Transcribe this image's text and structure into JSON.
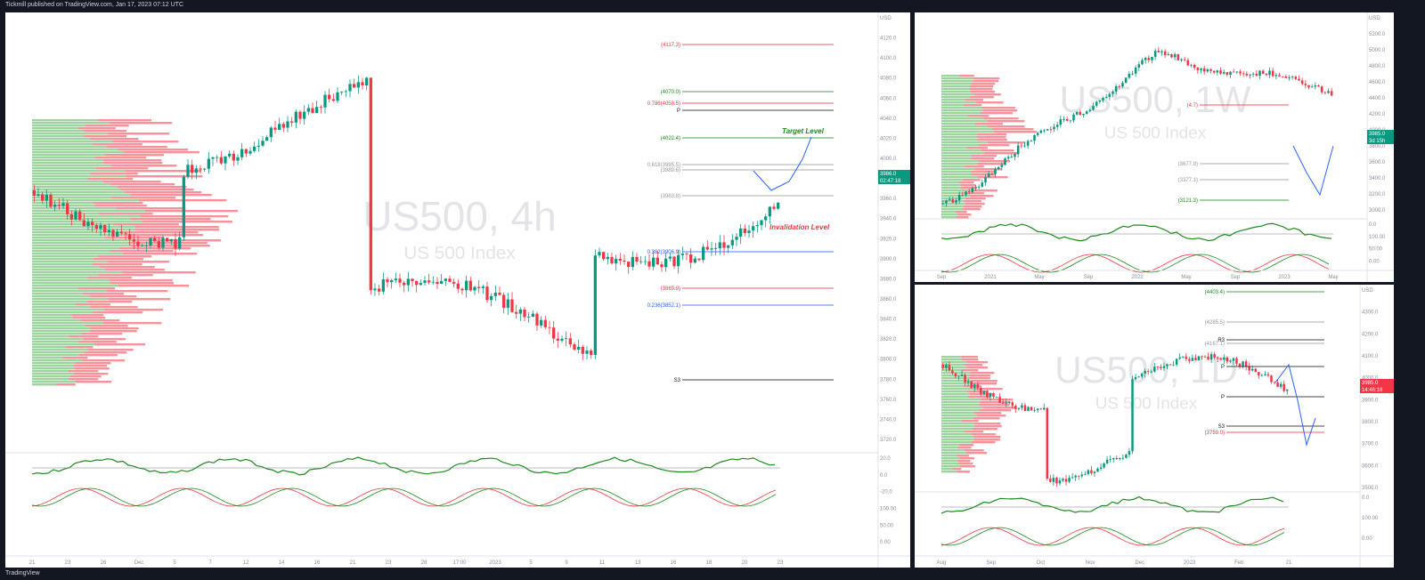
{
  "header": {
    "published": "Tickmill published on TradingView.com, Jan 17, 2023 07:12 UTC"
  },
  "footer": {
    "logo": "TradingView"
  },
  "colors": {
    "up": "#089981",
    "down": "#f23645",
    "green_line": "#1b8c1b",
    "red_line": "#f23645",
    "blue_proj": "#2962ff"
  },
  "chart_data": [
    {
      "type": "candlestick",
      "panel": "4h",
      "title": "US500, 4h",
      "subtitle": "US 500 Index",
      "y_axis": {
        "ticks": [
          "USD",
          "4120.0",
          "4100.0",
          "4080.0",
          "4060.0",
          "4040.0",
          "4020.0",
          "4000.0",
          "3980.0",
          "3960.0",
          "3940.0",
          "3920.0",
          "3900.0",
          "3880.0",
          "3860.0",
          "3840.0",
          "3820.0",
          "3800.0",
          "3780.0",
          "3760.0",
          "3740.0",
          "3720.0"
        ]
      },
      "x_axis": {
        "ticks": [
          "21",
          "23",
          "26",
          "Dec",
          "5",
          "7",
          "12",
          "14",
          "16",
          "21",
          "23",
          "28",
          "17:00",
          "2023",
          "5",
          "9",
          "11",
          "13",
          "16",
          "18",
          "20",
          "23"
        ]
      },
      "price_label": "3986.0",
      "timer_label": "02:47:18",
      "levels": [
        {
          "label": "(4117.3)",
          "color": "#f23645"
        },
        {
          "label": "(4070.0)",
          "color": "#1b8c1b"
        },
        {
          "label": "0.786(4058.5)",
          "color": "#f23645"
        },
        {
          "label": "P",
          "color": "#131722"
        },
        {
          "label": "(4022.4)",
          "color": "#1b8c1b"
        },
        {
          "label": "0.618(3995.5)",
          "color": "#9598a1"
        },
        {
          "label": "(3989.6)",
          "color": "#9598a1"
        },
        {
          "label": "(3963.8)",
          "color": "#9598a1"
        },
        {
          "label": "0.382(3906.9)",
          "color": "#2962ff"
        },
        {
          "label": "(3869.9)",
          "color": "#f23645"
        },
        {
          "label": "0.236(3852.1)",
          "color": "#2962ff"
        },
        {
          "label": "S3",
          "color": "#131722"
        }
      ],
      "annotations": {
        "target": "Target Level",
        "invalidation": "Invalidation Level"
      },
      "osc_ticks": [
        "20.0",
        "0.0",
        "-20.0",
        "100.00",
        "50.00",
        "0.00"
      ]
    },
    {
      "type": "candlestick",
      "panel": "1W",
      "title": "US500, 1W",
      "subtitle": "US 500 Index",
      "y_axis": {
        "ticks": [
          "USD",
          "5200.0",
          "5000.0",
          "4800.0",
          "4600.0",
          "4400.0",
          "4200.0",
          "4000.0",
          "3800.0",
          "3600.0",
          "3400.0",
          "3200.0",
          "3000.0"
        ]
      },
      "x_axis": {
        "ticks": [
          "Sep",
          "2021",
          "May",
          "Sep",
          "2022",
          "May",
          "Sep",
          "2023",
          "May"
        ]
      },
      "price_label": "3985.0",
      "timer_label": "3d 15h",
      "levels": [
        {
          "label": "(4.7)",
          "color": "#f23645"
        },
        {
          "label": "(3677.9)",
          "color": "#9598a1"
        },
        {
          "label": "(3377.1)",
          "color": "#9598a1"
        },
        {
          "label": "(3121.3)",
          "color": "#1b8c1b"
        }
      ],
      "osc_ticks": [
        "0.0",
        "100.00",
        "50.00",
        "0.00"
      ]
    },
    {
      "type": "candlestick",
      "panel": "1D",
      "title": "US500, 1D",
      "subtitle": "US 500 Index",
      "y_axis": {
        "ticks": [
          "USD",
          "4300.0",
          "4200.0",
          "4100.0",
          "4000.0",
          "3900.0",
          "3800.0",
          "3700.0",
          "3600.0",
          "3500.0"
        ]
      },
      "x_axis": {
        "ticks": [
          "Aug",
          "Sep",
          "Oct",
          "Nov",
          "Dec",
          "2023",
          "Feb",
          "21"
        ]
      },
      "price_label": "3985.0",
      "timer_label": "14:46:18",
      "levels": [
        {
          "label": "(4403.4)",
          "color": "#1b8c1b"
        },
        {
          "label": "(4285.5)",
          "color": "#9598a1"
        },
        {
          "label": "(4167.1)",
          "color": "#9598a1"
        },
        {
          "label": "R3",
          "color": "#131722"
        },
        {
          "label": "P",
          "color": "#131722"
        },
        {
          "label": "P",
          "color": "#131722"
        },
        {
          "label": "(3759.0)",
          "color": "#f23645"
        },
        {
          "label": "S3",
          "color": "#131722"
        }
      ],
      "osc_ticks": [
        "0.0",
        "100.00",
        "0.00"
      ]
    }
  ]
}
